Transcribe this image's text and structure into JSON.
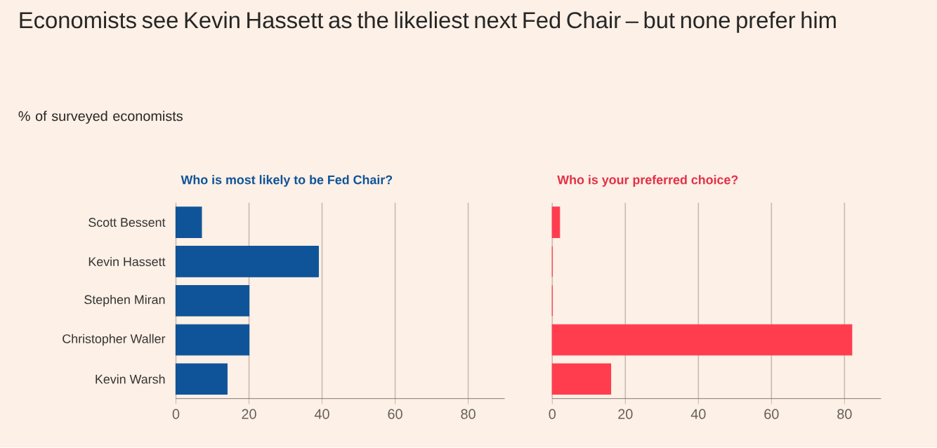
{
  "chart_data": [
    {
      "type": "bar",
      "orientation": "horizontal",
      "title": "Who is most likely to be Fed Chair?",
      "annotations": [
        "Economists see Kevin Hassett as the likeliest next Fed Chair – but none prefer him",
        "% of surveyed economists"
      ],
      "categories": [
        "Scott Bessent",
        "Kevin Hassett",
        "Stephen Miran",
        "Christopher Waller",
        "Kevin Warsh"
      ],
      "values": [
        7,
        39,
        20,
        20,
        14
      ],
      "color": "#0f5499",
      "xlim": [
        0,
        90
      ],
      "xticks": [
        0,
        20,
        40,
        60,
        80
      ],
      "grid": "x"
    },
    {
      "type": "bar",
      "orientation": "horizontal",
      "title": "Who is your preferred choice?",
      "categories": [
        null,
        null,
        null,
        null,
        null
      ],
      "values": [
        2,
        0,
        0,
        82,
        16
      ],
      "color": "#ff3d4f",
      "xlim": [
        0,
        90
      ],
      "xticks": [
        0,
        20,
        40,
        60,
        80
      ],
      "grid": "x",
      "tick_labels": "x"
    }
  ]
}
